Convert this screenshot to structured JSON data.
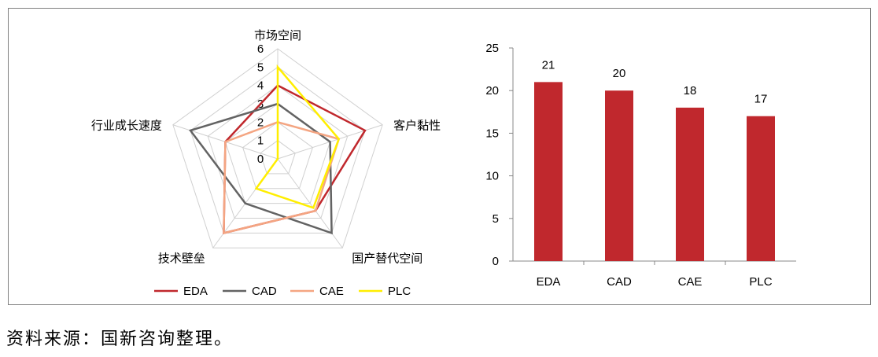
{
  "radar_chart": {
    "type": "radar",
    "axes": [
      "市场空间",
      "客户黏性",
      "国产替代空间",
      "技术壁垒",
      "行业成长速度"
    ],
    "scale_ticks": [
      "0",
      "1",
      "2",
      "3",
      "4",
      "5",
      "6"
    ],
    "range": [
      0,
      6
    ],
    "series": [
      {
        "name": "EDA",
        "color": "#c0282d",
        "values": [
          4,
          5,
          3.5,
          5,
          3
        ]
      },
      {
        "name": "CAD",
        "color": "#636363",
        "values": [
          3,
          3,
          5,
          3,
          5
        ]
      },
      {
        "name": "CAE",
        "color": "#f4a582",
        "values": [
          2,
          3.5,
          3.5,
          5,
          3
        ]
      },
      {
        "name": "PLC",
        "color": "#ffee00",
        "values": [
          5,
          3.5,
          3.3,
          2,
          0
        ]
      }
    ],
    "legend": "bottom"
  },
  "chart_data": {
    "type": "bar",
    "categories": [
      "EDA",
      "CAD",
      "CAE",
      "PLC"
    ],
    "values": [
      21,
      20,
      18,
      17
    ],
    "value_labels": [
      "21",
      "20",
      "18",
      "17"
    ],
    "ylim": [
      0,
      25
    ],
    "y_ticks": [
      "0",
      "5",
      "10",
      "15",
      "20",
      "25"
    ],
    "color": "#c0282d",
    "grid": false
  },
  "source_text": "资料来源：国新咨询整理。"
}
